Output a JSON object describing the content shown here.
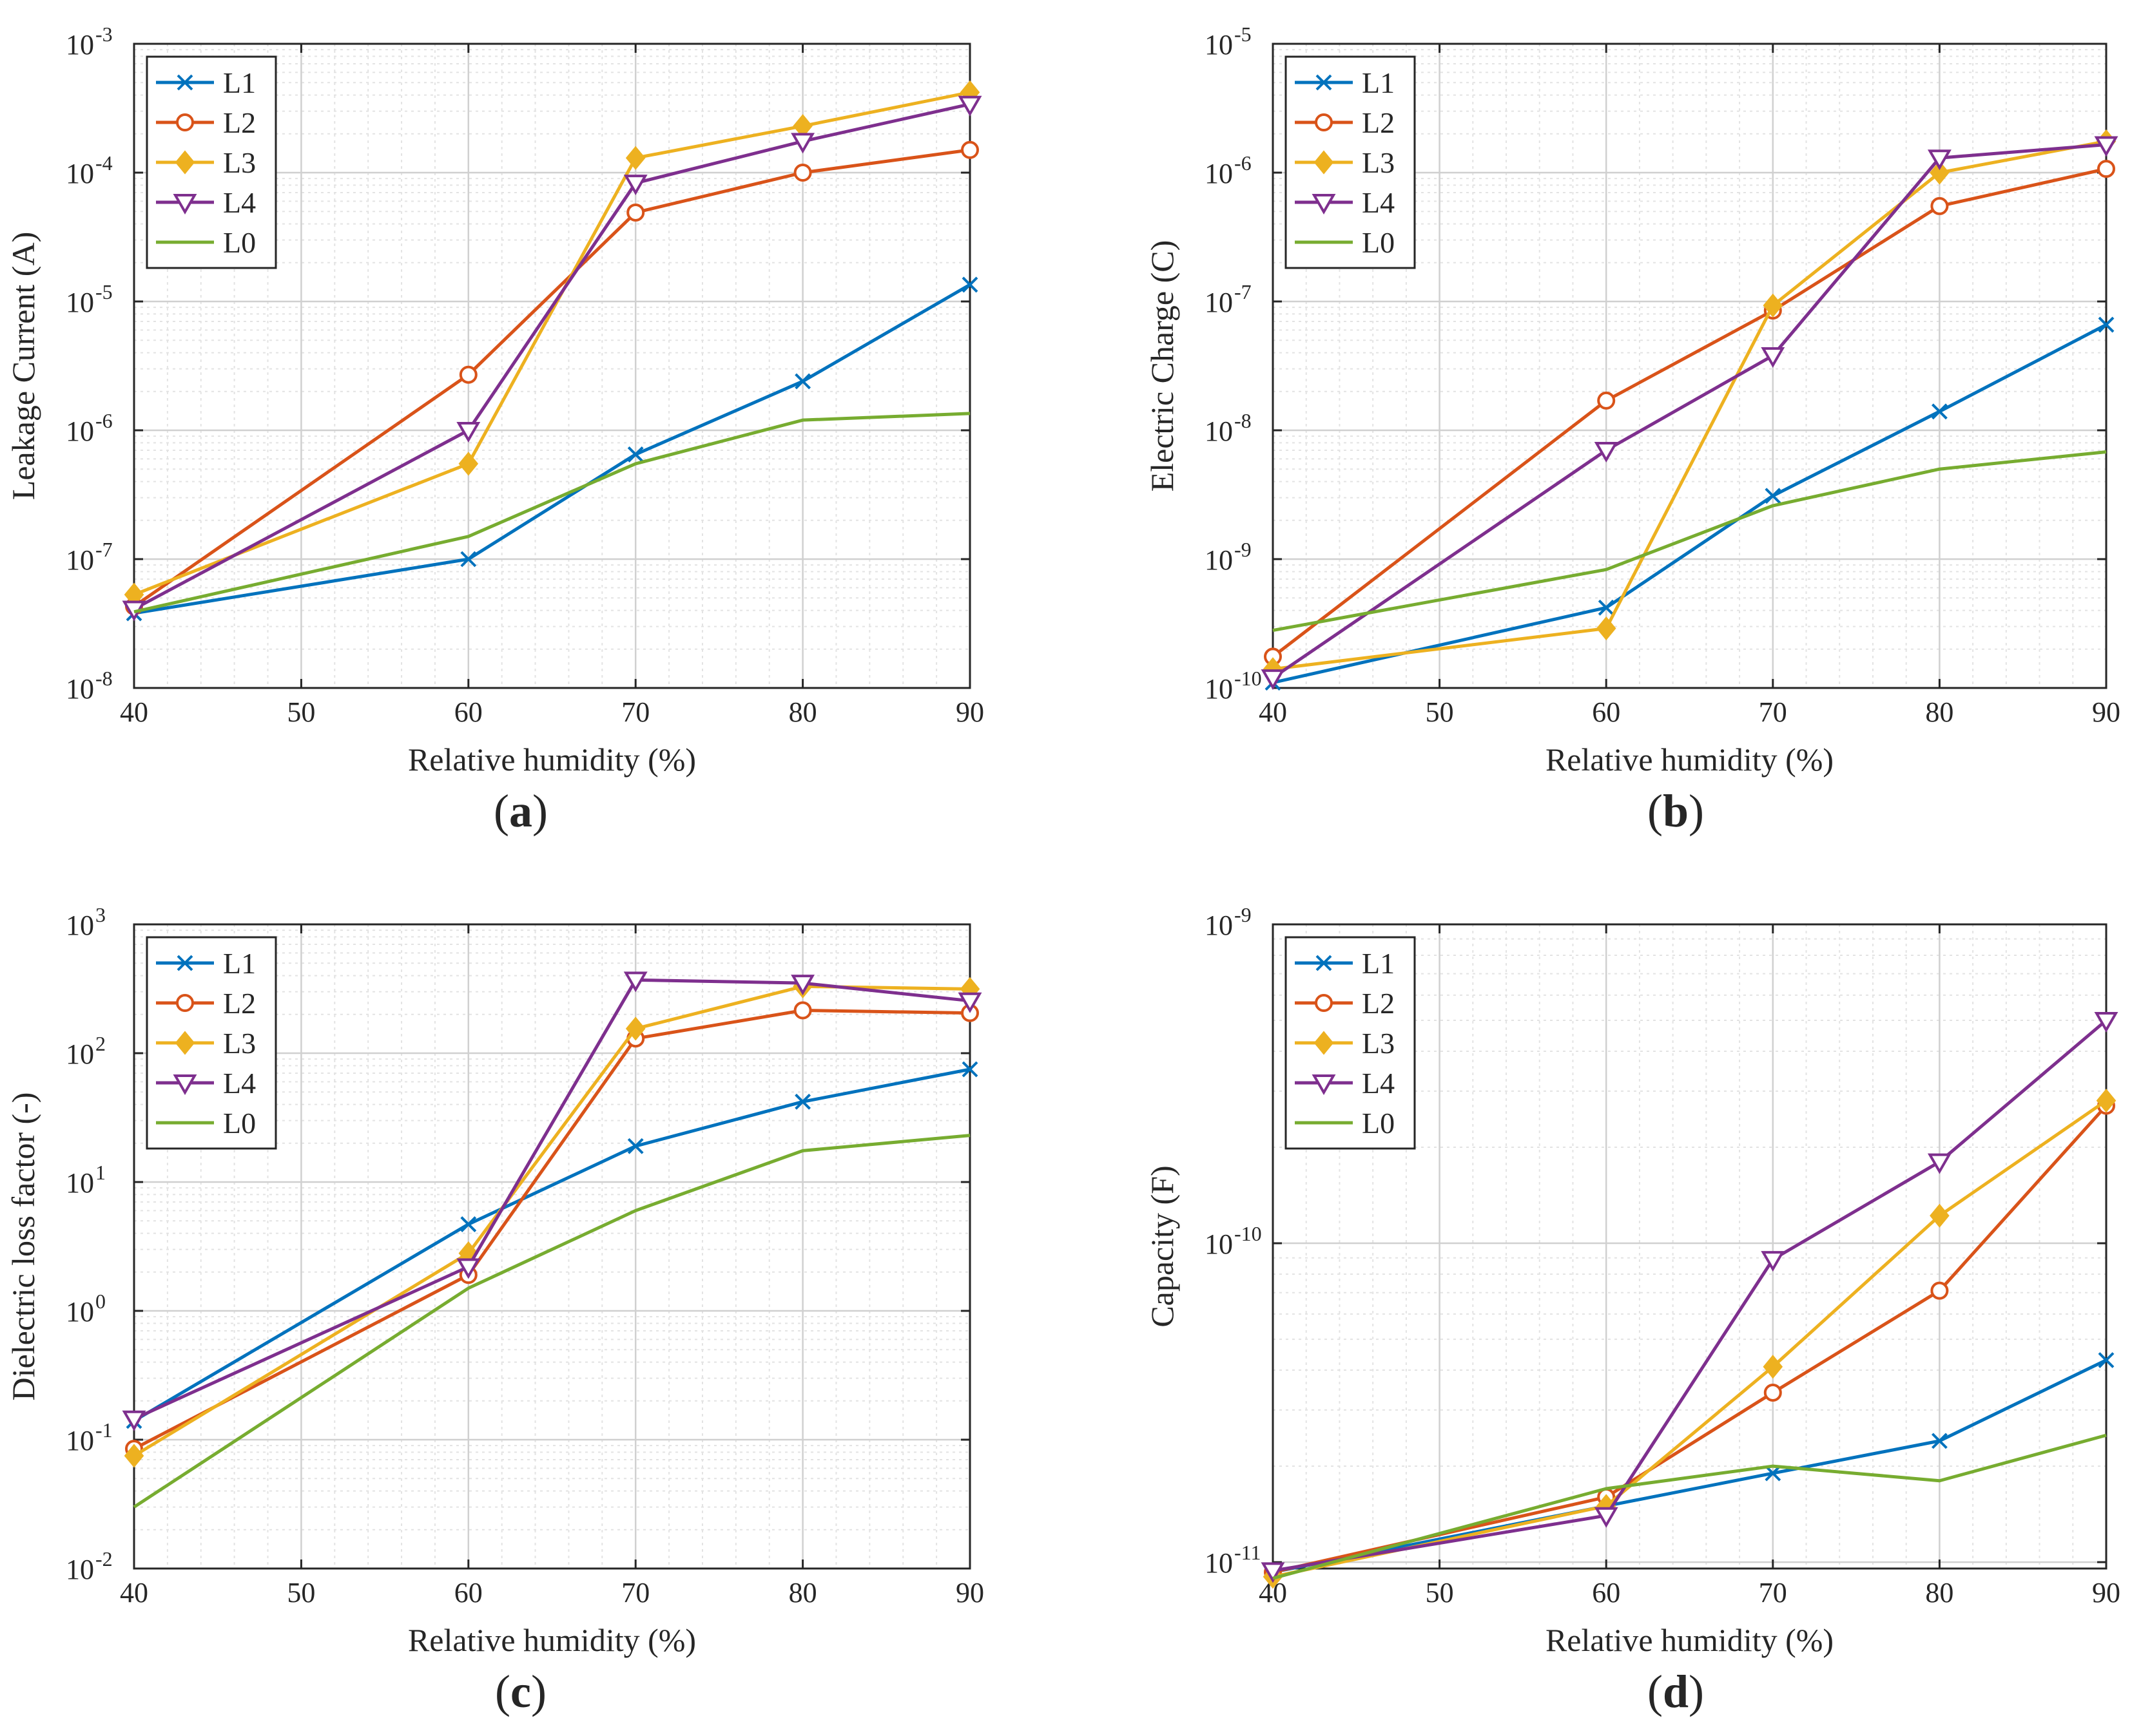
{
  "figure": {
    "colors": {
      "L1": "#0072BD",
      "L2": "#D95319",
      "L3": "#EDB120",
      "L4": "#7E2F8E",
      "L0": "#77AC30",
      "grid": "#e3e3e3",
      "axis": "#262626"
    }
  },
  "chart_data": [
    {
      "id": "a",
      "type": "line",
      "panel_label": "(a)",
      "xlabel": "Relative humidity (%)",
      "ylabel": "Leakage Current (A)",
      "xlim": [
        40,
        90
      ],
      "ylim_exp": [
        -8,
        -3
      ],
      "yscale": "log",
      "grid": true,
      "legend": "top-left",
      "x_ticks": [
        "40",
        "50",
        "60",
        "70",
        "80",
        "90"
      ],
      "y_tick_labels": [
        {
          "base": "10",
          "exp": "-8"
        },
        {
          "base": "10",
          "exp": "-7"
        },
        {
          "base": "10",
          "exp": "-6"
        },
        {
          "base": "10",
          "exp": "-5"
        },
        {
          "base": "10",
          "exp": "-4"
        },
        {
          "base": "10",
          "exp": "-3"
        }
      ],
      "series": [
        {
          "name": "L1",
          "marker": "x",
          "x": [
            40,
            60,
            70,
            80,
            90
          ],
          "y": [
            3.8e-08,
            1e-07,
            6.5e-07,
            2.4e-06,
            1.35e-05
          ]
        },
        {
          "name": "L2",
          "marker": "o",
          "x": [
            40,
            60,
            70,
            80,
            90
          ],
          "y": [
            4.3e-08,
            2.7e-06,
            4.9e-05,
            0.0001,
            0.00015
          ]
        },
        {
          "name": "L3",
          "marker": "diamond",
          "x": [
            40,
            60,
            70,
            80,
            90
          ],
          "y": [
            5.3e-08,
            5.5e-07,
            0.00013,
            0.00023,
            0.00042
          ]
        },
        {
          "name": "L4",
          "marker": "triangle-down",
          "x": [
            40,
            60,
            70,
            80,
            90
          ],
          "y": [
            4.1e-08,
            1e-06,
            8.3e-05,
            0.000175,
            0.00034
          ]
        },
        {
          "name": "L0",
          "marker": "none",
          "x": [
            40,
            60,
            70,
            80,
            90
          ],
          "y": [
            3.9e-08,
            1.5e-07,
            5.5e-07,
            1.2e-06,
            1.35e-06
          ]
        }
      ]
    },
    {
      "id": "b",
      "type": "line",
      "panel_label": "(b)",
      "xlabel": "Relative humidity (%)",
      "ylabel": "Electric Charge (C)",
      "xlim": [
        40,
        90
      ],
      "ylim_exp": [
        -10,
        -5
      ],
      "yscale": "log",
      "grid": true,
      "legend": "top-left",
      "x_ticks": [
        "40",
        "50",
        "60",
        "70",
        "80",
        "90"
      ],
      "y_tick_labels": [
        {
          "base": "10",
          "exp": "-10"
        },
        {
          "base": "10",
          "exp": "-9"
        },
        {
          "base": "10",
          "exp": "-8"
        },
        {
          "base": "10",
          "exp": "-7"
        },
        {
          "base": "10",
          "exp": "-6"
        },
        {
          "base": "10",
          "exp": "-5"
        }
      ],
      "series": [
        {
          "name": "L1",
          "marker": "x",
          "x": [
            40,
            60,
            70,
            80,
            90
          ],
          "y": [
            1.1e-10,
            4.2e-10,
            3.1e-09,
            1.4e-08,
            6.6e-08
          ]
        },
        {
          "name": "L2",
          "marker": "o",
          "x": [
            40,
            60,
            70,
            80,
            90
          ],
          "y": [
            1.75e-10,
            1.7e-08,
            8.5e-08,
            5.5e-07,
            1.07e-06
          ]
        },
        {
          "name": "L3",
          "marker": "diamond",
          "x": [
            40,
            60,
            70,
            80,
            90
          ],
          "y": [
            1.4e-10,
            2.9e-10,
            9.3e-08,
            1e-06,
            1.75e-06
          ]
        },
        {
          "name": "L4",
          "marker": "triangle-down",
          "x": [
            40,
            60,
            70,
            80,
            90
          ],
          "y": [
            1.2e-10,
            7e-09,
            3.8e-08,
            1.3e-06,
            1.65e-06
          ]
        },
        {
          "name": "L0",
          "marker": "none",
          "x": [
            40,
            60,
            70,
            80,
            90
          ],
          "y": [
            2.8e-10,
            8.3e-10,
            2.6e-09,
            5e-09,
            6.8e-09
          ]
        }
      ]
    },
    {
      "id": "c",
      "type": "line",
      "panel_label": "(c)",
      "xlabel": "Relative humidity (%)",
      "ylabel": "Dielectric loss factor (-)",
      "xlim": [
        40,
        90
      ],
      "ylim_exp": [
        -2,
        3
      ],
      "yscale": "log",
      "grid": true,
      "legend": "top-left",
      "x_ticks": [
        "40",
        "50",
        "60",
        "70",
        "80",
        "90"
      ],
      "y_tick_labels": [
        {
          "base": "10",
          "exp": "-2"
        },
        {
          "base": "10",
          "exp": "-1"
        },
        {
          "base": "10",
          "exp": "0"
        },
        {
          "base": "10",
          "exp": "1"
        },
        {
          "base": "10",
          "exp": "2"
        },
        {
          "base": "10",
          "exp": "3"
        }
      ],
      "series": [
        {
          "name": "L1",
          "marker": "x",
          "x": [
            40,
            60,
            70,
            80,
            90
          ],
          "y": [
            0.14,
            4.7,
            19,
            42,
            75
          ]
        },
        {
          "name": "L2",
          "marker": "o",
          "x": [
            40,
            60,
            70,
            80,
            90
          ],
          "y": [
            0.085,
            1.9,
            130,
            215,
            205
          ]
        },
        {
          "name": "L3",
          "marker": "diamond",
          "x": [
            40,
            60,
            70,
            80,
            90
          ],
          "y": [
            0.075,
            2.8,
            155,
            330,
            315
          ]
        },
        {
          "name": "L4",
          "marker": "triangle-down",
          "x": [
            40,
            60,
            70,
            80,
            90
          ],
          "y": [
            0.145,
            2.2,
            370,
            350,
            255
          ]
        },
        {
          "name": "L0",
          "marker": "none",
          "x": [
            40,
            60,
            70,
            80,
            90
          ],
          "y": [
            0.03,
            1.5,
            6.0,
            17.5,
            23
          ]
        }
      ]
    },
    {
      "id": "d",
      "type": "line",
      "panel_label": "(d)",
      "xlabel": "Relative humidity (%)",
      "ylabel": "Capacity (F)",
      "xlim": [
        40,
        90
      ],
      "ylim_exp": [
        -11.02,
        -9
      ],
      "yscale": "log",
      "grid": true,
      "legend": "top-left",
      "x_ticks": [
        "40",
        "50",
        "60",
        "70",
        "80",
        "90"
      ],
      "y_tick_labels": [
        {
          "base": "10",
          "exp": "-11"
        },
        {
          "base": "10",
          "exp": "-10"
        },
        {
          "base": "10",
          "exp": "-9"
        }
      ],
      "series": [
        {
          "name": "L1",
          "marker": "x",
          "x": [
            40,
            60,
            70,
            80,
            90
          ],
          "y": [
            9.3e-12,
            1.5e-11,
            1.9e-11,
            2.4e-11,
            4.3e-11
          ]
        },
        {
          "name": "L2",
          "marker": "o",
          "x": [
            40,
            60,
            70,
            80,
            90
          ],
          "y": [
            9.3e-12,
            1.6e-11,
            3.4e-11,
            7.1e-11,
            2.7e-10
          ]
        },
        {
          "name": "L3",
          "marker": "diamond",
          "x": [
            40,
            60,
            70,
            80,
            90
          ],
          "y": [
            9e-12,
            1.5e-11,
            4.1e-11,
            1.22e-10,
            2.8e-10
          ]
        },
        {
          "name": "L4",
          "marker": "triangle-down",
          "x": [
            40,
            60,
            70,
            80,
            90
          ],
          "y": [
            9.4e-12,
            1.4e-11,
            8.9e-11,
            1.8e-10,
            5e-10
          ]
        },
        {
          "name": "L0",
          "marker": "none",
          "x": [
            40,
            60,
            70,
            80,
            90
          ],
          "y": [
            8.9e-12,
            1.7e-11,
            2e-11,
            1.8e-11,
            2.5e-11
          ]
        }
      ]
    }
  ]
}
